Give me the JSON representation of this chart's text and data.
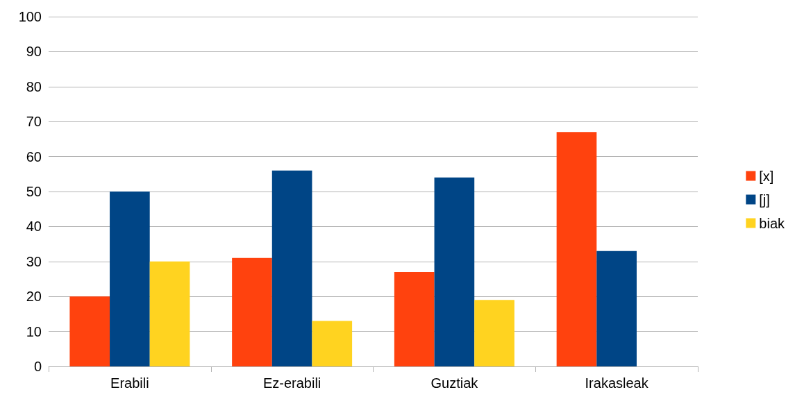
{
  "chart_data": {
    "type": "bar",
    "categories": [
      "Erabili",
      "Ez-erabili",
      "Guztiak",
      "Irakasleak"
    ],
    "series": [
      {
        "name": "[x]",
        "color": "#ff420e",
        "values": [
          20,
          31,
          27,
          67
        ]
      },
      {
        "name": "[j]",
        "color": "#004586",
        "values": [
          50,
          56,
          54,
          33
        ]
      },
      {
        "name": "biak",
        "color": "#ffd320",
        "values": [
          30,
          13,
          19,
          null
        ]
      }
    ],
    "ylim": [
      0,
      100
    ],
    "yticks": [
      0,
      10,
      20,
      30,
      40,
      50,
      60,
      70,
      80,
      90,
      100
    ],
    "grid": "y",
    "legend": "right"
  }
}
